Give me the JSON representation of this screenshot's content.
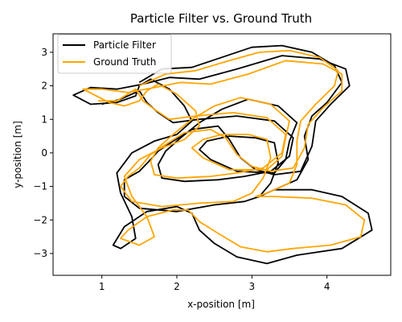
{
  "chart_data": {
    "type": "line",
    "title": "Particle Filter vs. Ground Truth",
    "xlabel": "x-position [m]",
    "ylabel": "y-position [m]",
    "xlim": [
      0.35,
      4.85
    ],
    "ylim": [
      -3.65,
      3.55
    ],
    "xticks": [
      1,
      2,
      3,
      4
    ],
    "yticks": [
      -3,
      -2,
      -1,
      0,
      1,
      2,
      3
    ],
    "grid": false,
    "legend_position": "top-left",
    "series": [
      {
        "name": "Particle Filter",
        "color": "#000000",
        "points": [
          [
            1.5,
            2.1
          ],
          [
            1.8,
            2.5
          ],
          [
            2.2,
            2.55
          ],
          [
            2.6,
            2.85
          ],
          [
            3.0,
            3.15
          ],
          [
            3.4,
            3.2
          ],
          [
            3.8,
            3.0
          ],
          [
            4.1,
            2.6
          ],
          [
            4.2,
            2.1
          ],
          [
            4.0,
            1.5
          ],
          [
            3.8,
            1.1
          ],
          [
            3.7,
            0.5
          ],
          [
            3.75,
            -0.2
          ],
          [
            3.6,
            -0.8
          ],
          [
            3.3,
            -1.1
          ],
          [
            3.1,
            -1.3
          ],
          [
            3.3,
            -1.1
          ],
          [
            3.8,
            -1.1
          ],
          [
            4.2,
            -1.3
          ],
          [
            4.55,
            -1.8
          ],
          [
            4.6,
            -2.3
          ],
          [
            4.2,
            -2.85
          ],
          [
            3.6,
            -3.05
          ],
          [
            3.2,
            -3.3
          ],
          [
            2.8,
            -3.1
          ],
          [
            2.5,
            -2.7
          ],
          [
            2.3,
            -2.3
          ],
          [
            2.2,
            -1.8
          ],
          [
            2.0,
            -1.6
          ],
          [
            1.6,
            -1.75
          ],
          [
            1.3,
            -2.2
          ],
          [
            1.15,
            -2.75
          ],
          [
            1.25,
            -2.85
          ],
          [
            1.45,
            -2.55
          ],
          [
            1.4,
            -1.9
          ],
          [
            1.25,
            -1.2
          ],
          [
            1.2,
            -0.6
          ],
          [
            1.4,
            0.0
          ],
          [
            1.7,
            0.35
          ],
          [
            2.0,
            0.55
          ],
          [
            2.2,
            0.95
          ],
          [
            2.1,
            1.4
          ],
          [
            1.9,
            1.9
          ],
          [
            1.65,
            2.2
          ],
          [
            1.5,
            2.0
          ],
          [
            1.45,
            1.7
          ],
          [
            1.2,
            1.5
          ],
          [
            0.85,
            1.45
          ],
          [
            0.62,
            1.72
          ],
          [
            0.85,
            1.95
          ],
          [
            1.2,
            1.9
          ],
          [
            1.55,
            2.05
          ],
          [
            1.9,
            2.25
          ],
          [
            2.3,
            2.2
          ],
          [
            2.8,
            2.5
          ],
          [
            3.4,
            2.9
          ],
          [
            3.9,
            2.8
          ],
          [
            4.25,
            2.5
          ],
          [
            4.3,
            2.0
          ],
          [
            4.05,
            1.45
          ],
          [
            3.85,
            0.95
          ],
          [
            3.8,
            0.2
          ],
          [
            3.65,
            -0.55
          ],
          [
            3.3,
            -0.65
          ],
          [
            3.05,
            -0.5
          ],
          [
            2.85,
            -0.15
          ],
          [
            2.7,
            0.4
          ],
          [
            2.55,
            0.8
          ],
          [
            2.2,
            0.7
          ],
          [
            1.95,
            0.35
          ],
          [
            1.75,
            0.05
          ],
          [
            1.65,
            -0.2
          ],
          [
            1.5,
            -0.55
          ],
          [
            1.3,
            -0.8
          ],
          [
            1.3,
            -1.3
          ],
          [
            1.5,
            -1.65
          ],
          [
            2.0,
            -1.75
          ],
          [
            2.5,
            -1.55
          ],
          [
            2.9,
            -1.45
          ],
          [
            3.1,
            -1.3
          ],
          [
            3.25,
            -0.9
          ],
          [
            3.35,
            -0.3
          ],
          [
            3.3,
            0.3
          ],
          [
            3.05,
            0.45
          ],
          [
            2.7,
            0.5
          ],
          [
            2.4,
            0.35
          ],
          [
            2.3,
            0.1
          ],
          [
            2.45,
            -0.2
          ],
          [
            2.8,
            -0.55
          ],
          [
            3.3,
            -0.6
          ],
          [
            3.45,
            -0.2
          ],
          [
            3.5,
            0.35
          ],
          [
            3.6,
            0.9
          ],
          [
            3.35,
            1.4
          ],
          [
            2.95,
            1.6
          ],
          [
            2.6,
            1.3
          ],
          [
            2.3,
            0.9
          ],
          [
            2.05,
            0.45
          ],
          [
            1.85,
            0.05
          ],
          [
            1.75,
            -0.35
          ],
          [
            1.8,
            -0.75
          ],
          [
            2.1,
            -0.85
          ],
          [
            2.55,
            -0.8
          ],
          [
            2.9,
            -0.7
          ],
          [
            3.25,
            -0.55
          ],
          [
            3.5,
            -0.1
          ],
          [
            3.55,
            0.45
          ],
          [
            3.3,
            0.95
          ],
          [
            2.8,
            1.1
          ],
          [
            2.3,
            1.0
          ],
          [
            1.95,
            0.9
          ],
          [
            1.75,
            1.2
          ],
          [
            1.6,
            1.5
          ],
          [
            1.5,
            1.85
          ],
          [
            1.25,
            1.6
          ],
          [
            1.0,
            1.45
          ]
        ]
      },
      {
        "name": "Ground Truth",
        "color": "#FFA500",
        "points": [
          [
            1.5,
            2.0
          ],
          [
            1.85,
            2.35
          ],
          [
            2.25,
            2.45
          ],
          [
            2.7,
            2.75
          ],
          [
            3.1,
            3.0
          ],
          [
            3.5,
            3.05
          ],
          [
            3.9,
            2.85
          ],
          [
            4.15,
            2.45
          ],
          [
            4.1,
            2.0
          ],
          [
            3.85,
            1.45
          ],
          [
            3.65,
            0.95
          ],
          [
            3.6,
            0.35
          ],
          [
            3.6,
            -0.35
          ],
          [
            3.5,
            -0.9
          ],
          [
            3.2,
            -1.2
          ],
          [
            3.05,
            -1.3
          ],
          [
            3.3,
            -1.3
          ],
          [
            3.8,
            -1.35
          ],
          [
            4.25,
            -1.55
          ],
          [
            4.5,
            -2.0
          ],
          [
            4.45,
            -2.5
          ],
          [
            4.05,
            -2.75
          ],
          [
            3.55,
            -2.85
          ],
          [
            3.2,
            -2.95
          ],
          [
            2.85,
            -2.8
          ],
          [
            2.55,
            -2.4
          ],
          [
            2.3,
            -2.05
          ],
          [
            2.15,
            -1.7
          ],
          [
            1.95,
            -1.7
          ],
          [
            1.6,
            -1.9
          ],
          [
            1.35,
            -2.3
          ],
          [
            1.25,
            -2.55
          ],
          [
            1.5,
            -2.75
          ],
          [
            1.7,
            -2.5
          ],
          [
            1.6,
            -1.9
          ],
          [
            1.4,
            -1.3
          ],
          [
            1.3,
            -0.7
          ],
          [
            1.5,
            -0.2
          ],
          [
            1.8,
            0.15
          ],
          [
            2.1,
            0.4
          ],
          [
            2.3,
            0.8
          ],
          [
            2.25,
            1.25
          ],
          [
            2.0,
            1.75
          ],
          [
            1.75,
            2.05
          ],
          [
            1.6,
            1.85
          ],
          [
            1.5,
            1.55
          ],
          [
            1.3,
            1.4
          ],
          [
            1.1,
            1.5
          ],
          [
            0.75,
            1.9
          ],
          [
            1.0,
            1.9
          ],
          [
            1.35,
            1.8
          ],
          [
            1.7,
            1.95
          ],
          [
            2.05,
            2.1
          ],
          [
            2.45,
            2.05
          ],
          [
            2.95,
            2.35
          ],
          [
            3.45,
            2.75
          ],
          [
            3.95,
            2.65
          ],
          [
            4.2,
            2.35
          ],
          [
            4.2,
            1.85
          ],
          [
            3.95,
            1.35
          ],
          [
            3.75,
            0.85
          ],
          [
            3.7,
            0.15
          ],
          [
            3.55,
            -0.45
          ],
          [
            3.25,
            -0.55
          ],
          [
            3.0,
            -0.4
          ],
          [
            2.8,
            -0.05
          ],
          [
            2.65,
            0.45
          ],
          [
            2.45,
            0.7
          ],
          [
            2.1,
            0.6
          ],
          [
            1.85,
            0.25
          ],
          [
            1.65,
            -0.05
          ],
          [
            1.5,
            -0.45
          ],
          [
            1.35,
            -0.7
          ],
          [
            1.25,
            -1.0
          ],
          [
            1.4,
            -1.45
          ],
          [
            1.8,
            -1.6
          ],
          [
            2.3,
            -1.5
          ],
          [
            2.75,
            -1.45
          ],
          [
            3.0,
            -1.2
          ],
          [
            3.15,
            -0.75
          ],
          [
            3.25,
            -0.15
          ],
          [
            3.2,
            0.4
          ],
          [
            2.95,
            0.55
          ],
          [
            2.6,
            0.55
          ],
          [
            2.35,
            0.4
          ],
          [
            2.2,
            0.15
          ],
          [
            2.35,
            -0.15
          ],
          [
            2.7,
            -0.5
          ],
          [
            3.2,
            -0.5
          ],
          [
            3.4,
            -0.1
          ],
          [
            3.45,
            0.45
          ],
          [
            3.5,
            0.95
          ],
          [
            3.25,
            1.45
          ],
          [
            2.85,
            1.65
          ],
          [
            2.5,
            1.4
          ],
          [
            2.2,
            1.0
          ],
          [
            1.95,
            0.55
          ],
          [
            1.75,
            0.15
          ],
          [
            1.65,
            -0.25
          ],
          [
            1.7,
            -0.65
          ],
          [
            2.0,
            -0.75
          ],
          [
            2.45,
            -0.7
          ],
          [
            2.8,
            -0.6
          ],
          [
            3.15,
            -0.45
          ],
          [
            3.4,
            0.0
          ],
          [
            3.45,
            0.55
          ],
          [
            3.2,
            1.05
          ],
          [
            2.75,
            1.2
          ],
          [
            2.25,
            1.1
          ],
          [
            1.9,
            1.0
          ],
          [
            1.7,
            1.3
          ],
          [
            1.55,
            1.55
          ],
          [
            1.45,
            1.9
          ],
          [
            1.2,
            1.55
          ],
          [
            0.95,
            1.55
          ]
        ]
      }
    ]
  }
}
